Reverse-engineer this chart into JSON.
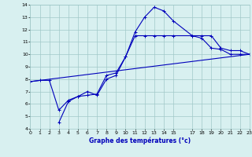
{
  "xlabel": "Graphe des températures (°c)",
  "bg_color": "#d8f0f0",
  "grid_color": "#a0c8c8",
  "line_color": "#0000bb",
  "xlim": [
    0,
    23
  ],
  "ylim": [
    4,
    14
  ],
  "xticks": [
    0,
    1,
    2,
    3,
    4,
    5,
    6,
    7,
    8,
    9,
    10,
    11,
    12,
    13,
    14,
    15,
    17,
    18,
    19,
    20,
    21,
    22,
    23
  ],
  "yticks": [
    4,
    5,
    6,
    7,
    8,
    9,
    10,
    11,
    12,
    13,
    14
  ],
  "line1_x": [
    0,
    1,
    2,
    3,
    4,
    5,
    6,
    7,
    8,
    9,
    10,
    11,
    12,
    13,
    14,
    15,
    17,
    18,
    19,
    20,
    21,
    22,
    23
  ],
  "line1_y": [
    7.8,
    7.9,
    7.9,
    5.5,
    6.3,
    6.6,
    6.7,
    6.8,
    8.3,
    8.5,
    9.8,
    11.8,
    13.0,
    13.8,
    13.5,
    12.7,
    11.5,
    11.3,
    10.5,
    10.4,
    10.0,
    10.0,
    10.0
  ],
  "line2_x": [
    3,
    4,
    5,
    6,
    7,
    8,
    9,
    10,
    11,
    12,
    13,
    14,
    15,
    17,
    18,
    19,
    20,
    21,
    22,
    23
  ],
  "line2_y": [
    4.5,
    6.2,
    6.6,
    7.0,
    6.7,
    8.0,
    8.3,
    9.8,
    11.5,
    11.5,
    11.5,
    11.5,
    11.5,
    11.5,
    11.5,
    11.5,
    10.5,
    10.3,
    10.3,
    10.0
  ],
  "line3_x": [
    0,
    23
  ],
  "line3_y": [
    7.8,
    10.0
  ]
}
